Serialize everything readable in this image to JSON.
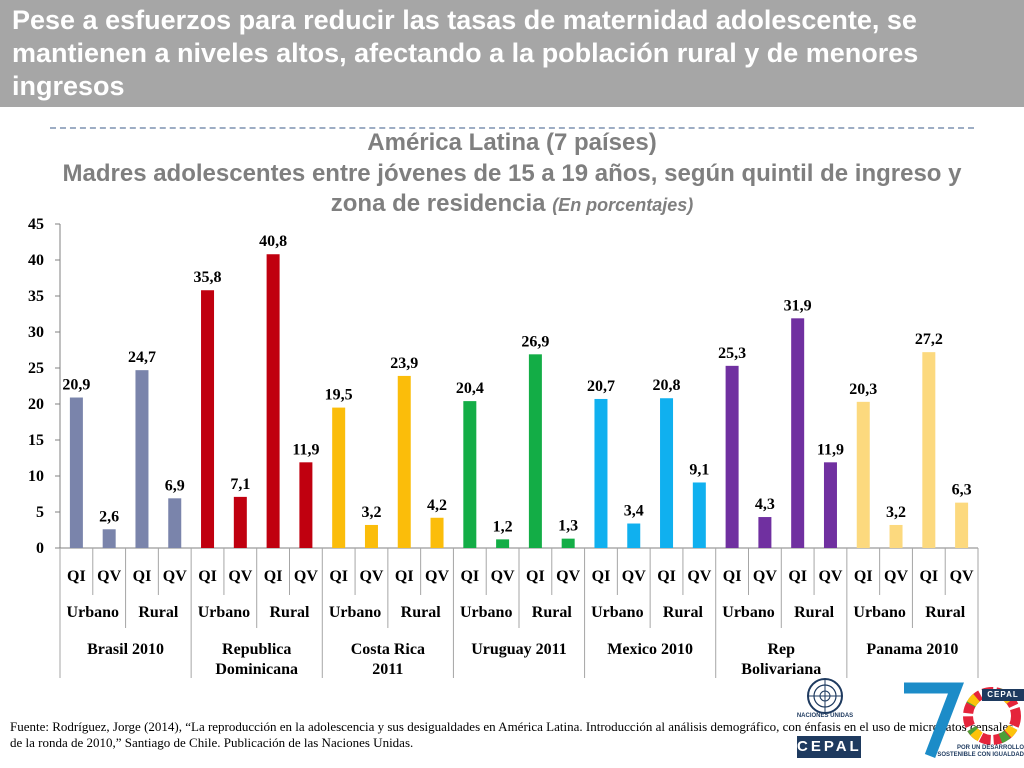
{
  "slide": {
    "title": "Pese a esfuerzos para reducir las tasas de maternidad adolescente, se mantienen a niveles altos, afectando a la población rural y de menores ingresos",
    "chart_title_line1": "América Latina (7 países)",
    "chart_title_line2": "Madres adolescentes entre jóvenes de 15 a 19 años, según quintil de ingreso y",
    "chart_title_line3": "zona de residencia",
    "chart_title_unit": "(En porcentajes)",
    "source": "Fuente: Rodríguez, Jorge (2014), “La reproducción en la adolescencia y sus desigualdades en América Latina. Introducción al análisis demográfico, con énfasis en el uso de microdatos censales de la ronda de 2010,” Santiago de Chile. Publicación de las Naciones Unidas.",
    "logo_un_text": "NACIONES UNIDAS",
    "logo_cepal_text": "CEPAL",
    "logo_70_cepal": "CEPAL",
    "logo_70_slogan": "POR UN DESARROLLO SOSTENIBLE CON IGUALDAD"
  },
  "chart_data": {
    "type": "bar",
    "title": "América Latina (7 países)",
    "ylim": [
      0,
      45
    ],
    "yticks": [
      0,
      5,
      10,
      15,
      20,
      25,
      30,
      35,
      40,
      45
    ],
    "grid": false,
    "quintiles": [
      "QI",
      "QV"
    ],
    "zones": [
      "Urbano",
      "Rural"
    ],
    "countries": [
      {
        "label": "Brasil 2010",
        "color": "#7a84ab",
        "values": [
          20.9,
          2.6,
          24.7,
          6.9
        ],
        "value_labels": [
          "20,9",
          "2,6",
          "24,7",
          "6,9"
        ]
      },
      {
        "label": "Republica Dominicana",
        "color": "#c0000f",
        "values": [
          35.8,
          7.1,
          40.8,
          11.9
        ],
        "value_labels": [
          "35,8",
          "7,1",
          "40,8",
          "11,9"
        ]
      },
      {
        "label": "Costa Rica 2011",
        "color": "#fbbd0a",
        "values": [
          19.5,
          3.2,
          23.9,
          4.2
        ],
        "value_labels": [
          "19,5",
          "3,2",
          "23,9",
          "4,2"
        ]
      },
      {
        "label": "Uruguay 2011",
        "color": "#13ad46",
        "values": [
          20.4,
          1.2,
          26.9,
          1.3
        ],
        "value_labels": [
          "20,4",
          "1,2",
          "26,9",
          "1,3"
        ]
      },
      {
        "label": "Mexico 2010",
        "color": "#10b0ef",
        "values": [
          20.7,
          3.4,
          20.8,
          9.1
        ],
        "value_labels": [
          "20,7",
          "3,4",
          "20,8",
          "9,1"
        ]
      },
      {
        "label": "Rep Bolivariana",
        "color": "#7030a0",
        "values": [
          25.3,
          4.3,
          31.9,
          11.9
        ],
        "value_labels": [
          "25,3",
          "4,3",
          "31,9",
          "11,9"
        ]
      },
      {
        "label": "Panama 2010",
        "color": "#fcd97e",
        "values": [
          20.3,
          3.2,
          27.2,
          6.3
        ],
        "value_labels": [
          "20,3",
          "3,2",
          "27,2",
          "6,3"
        ]
      }
    ]
  }
}
